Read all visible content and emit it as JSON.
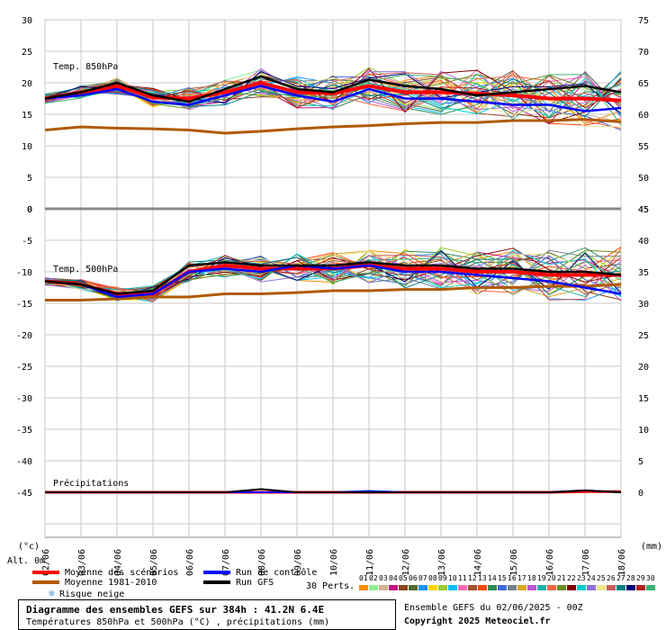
{
  "chart_data": [
    {
      "type": "line",
      "title": "Temp. 850hPa",
      "x": [
        "02/06",
        "03/06",
        "04/06",
        "05/06",
        "06/06",
        "07/06",
        "08/06",
        "09/06",
        "10/06",
        "11/06",
        "12/06",
        "13/06",
        "14/06",
        "15/06",
        "16/06",
        "17/06",
        "18/06"
      ],
      "y_left_ticks": [
        30,
        25,
        20,
        15,
        10,
        5,
        0
      ],
      "y_right_ticks": [
        75,
        70,
        65,
        60,
        55,
        50,
        45
      ],
      "ylim": [
        0,
        30
      ],
      "series": [
        {
          "name": "Moyenne des scénarios",
          "color": "#ff0000",
          "values": [
            17.5,
            18.5,
            19.5,
            17.7,
            17.5,
            18.5,
            20.0,
            18.5,
            18.3,
            19.5,
            18.5,
            18.5,
            18.3,
            18.0,
            17.5,
            17.5,
            17.2
          ]
        },
        {
          "name": "Moyenne 1981-2010",
          "color": "#b05a00",
          "values": [
            12.5,
            13.0,
            12.8,
            12.7,
            12.5,
            12.0,
            12.3,
            12.7,
            13.0,
            13.2,
            13.5,
            13.7,
            13.7,
            14.0,
            14.0,
            14.2,
            13.8
          ]
        },
        {
          "name": "Run de contrôle",
          "color": "#0000ff",
          "values": [
            17.5,
            18.0,
            19.0,
            17.0,
            16.5,
            18.0,
            19.5,
            18.0,
            17.0,
            19.0,
            17.5,
            17.5,
            17.0,
            16.5,
            16.5,
            15.5,
            16.0
          ]
        },
        {
          "name": "Run GFS",
          "color": "#000000",
          "values": [
            17.5,
            18.5,
            20.0,
            18.0,
            17.0,
            19.0,
            21.0,
            19.0,
            18.5,
            20.5,
            19.5,
            19.0,
            18.0,
            18.5,
            19.0,
            19.5,
            18.5
          ]
        }
      ]
    },
    {
      "type": "line",
      "title": "Temp. 500hPa",
      "x": [
        "02/06",
        "03/06",
        "04/06",
        "05/06",
        "06/06",
        "07/06",
        "08/06",
        "09/06",
        "10/06",
        "11/06",
        "12/06",
        "13/06",
        "14/06",
        "15/06",
        "16/06",
        "17/06",
        "18/06"
      ],
      "y_left_ticks": [
        -5,
        -10,
        -15,
        -20,
        -25,
        -30,
        -35,
        -40,
        -45
      ],
      "y_right_ticks": [
        40,
        35,
        30,
        25,
        20,
        15,
        10,
        5,
        0
      ],
      "ylim": [
        -45,
        0
      ],
      "series": [
        {
          "name": "Moyenne des scénarios",
          "color": "#ff0000",
          "values": [
            -11.5,
            -12.0,
            -13.5,
            -13.5,
            -10.0,
            -9.0,
            -9.5,
            -9.5,
            -9.5,
            -9.0,
            -9.5,
            -9.5,
            -10.0,
            -10.0,
            -10.5,
            -10.5,
            -10.5
          ]
        },
        {
          "name": "Moyenne 1981-2010",
          "color": "#b05a00",
          "values": [
            -14.5,
            -14.5,
            -14.3,
            -14.0,
            -14.0,
            -13.5,
            -13.5,
            -13.3,
            -13.0,
            -13.0,
            -12.8,
            -12.8,
            -12.5,
            -12.5,
            -12.3,
            -12.3,
            -12.0
          ]
        },
        {
          "name": "Run de contrôle",
          "color": "#0000ff",
          "values": [
            -11.5,
            -12.0,
            -14.0,
            -13.5,
            -10.0,
            -9.5,
            -10.0,
            -9.0,
            -9.5,
            -9.0,
            -10.0,
            -10.0,
            -10.5,
            -11.0,
            -11.5,
            -12.5,
            -13.5
          ]
        },
        {
          "name": "Run GFS",
          "color": "#000000",
          "values": [
            -11.5,
            -12.0,
            -13.5,
            -13.0,
            -9.0,
            -8.5,
            -9.0,
            -9.0,
            -9.0,
            -8.5,
            -9.0,
            -9.0,
            -9.5,
            -9.5,
            -10.0,
            -10.0,
            -10.5
          ]
        }
      ]
    },
    {
      "type": "line",
      "title": "Précipitations",
      "x": [
        "02/06",
        "03/06",
        "04/06",
        "05/06",
        "06/06",
        "07/06",
        "08/06",
        "09/06",
        "10/06",
        "11/06",
        "12/06",
        "13/06",
        "14/06",
        "15/06",
        "16/06",
        "17/06",
        "18/06"
      ],
      "ylim": [
        0,
        45
      ],
      "series": [
        {
          "name": "Moyenne des scénarios",
          "color": "#ff0000",
          "values": [
            0,
            0,
            0,
            0,
            0,
            0,
            0,
            0,
            0,
            0,
            0,
            0,
            0,
            0,
            0,
            0.1,
            0.1
          ]
        },
        {
          "name": "Run de contrôle",
          "color": "#0000ff",
          "values": [
            0,
            0,
            0,
            0,
            0,
            0,
            0,
            0,
            0,
            0.2,
            0,
            0,
            0,
            0,
            0,
            0.3,
            0
          ]
        },
        {
          "name": "Run GFS",
          "color": "#000000",
          "values": [
            0,
            0,
            0,
            0,
            0,
            0,
            0.5,
            0,
            0,
            0,
            0,
            0,
            0,
            0,
            0,
            0.3,
            0
          ]
        }
      ]
    }
  ],
  "axis": {
    "left_unit": "(°c)",
    "right_unit": "(mm)",
    "alt_label": "Alt. 0m",
    "zero_right": "45"
  },
  "legend": {
    "mean": "Moyenne des scénarios",
    "clim": "Moyenne 1981-2010",
    "snow": "Risque neige",
    "control": "Run de contrôle",
    "gfs": "Run GFS",
    "perts": "30 Perts."
  },
  "perturbations": [
    {
      "label": "01",
      "color": "#ff8c00"
    },
    {
      "label": "02",
      "color": "#90ee90"
    },
    {
      "label": "03",
      "color": "#d2b48c"
    },
    {
      "label": "04",
      "color": "#c71585"
    },
    {
      "label": "05",
      "color": "#8b4513"
    },
    {
      "label": "06",
      "color": "#556b2f"
    },
    {
      "label": "07",
      "color": "#1e90ff"
    },
    {
      "label": "08",
      "color": "#ffd700"
    },
    {
      "label": "09",
      "color": "#9acd32"
    },
    {
      "label": "10",
      "color": "#00bfff"
    },
    {
      "label": "11",
      "color": "#ff69b4"
    },
    {
      "label": "12",
      "color": "#a0522d"
    },
    {
      "label": "13",
      "color": "#ff4500"
    },
    {
      "label": "14",
      "color": "#2e8b57"
    },
    {
      "label": "15",
      "color": "#4169e1"
    },
    {
      "label": "16",
      "color": "#708090"
    },
    {
      "label": "17",
      "color": "#daa520"
    },
    {
      "label": "18",
      "color": "#ba55d3"
    },
    {
      "label": "19",
      "color": "#20b2aa"
    },
    {
      "label": "20",
      "color": "#ff6347"
    },
    {
      "label": "21",
      "color": "#6b8e23"
    },
    {
      "label": "22",
      "color": "#800000"
    },
    {
      "label": "23",
      "color": "#00ced1"
    },
    {
      "label": "24",
      "color": "#9370db"
    },
    {
      "label": "25",
      "color": "#f0e68c"
    },
    {
      "label": "26",
      "color": "#cd5c5c"
    },
    {
      "label": "27",
      "color": "#008080"
    },
    {
      "label": "28",
      "color": "#000080"
    },
    {
      "label": "29",
      "color": "#b22222"
    },
    {
      "label": "30",
      "color": "#3cb371"
    }
  ],
  "footer": {
    "title": "Diagramme des ensembles GEFS sur 384h : 41.2N 6.4E",
    "subtitle": "Températures 850hPa et 500hPa (°C) , précipitations (mm)",
    "run": "Ensemble GEFS du 02/06/2025 - 00Z",
    "copyright": "Copyright 2025 Meteociel.fr"
  }
}
